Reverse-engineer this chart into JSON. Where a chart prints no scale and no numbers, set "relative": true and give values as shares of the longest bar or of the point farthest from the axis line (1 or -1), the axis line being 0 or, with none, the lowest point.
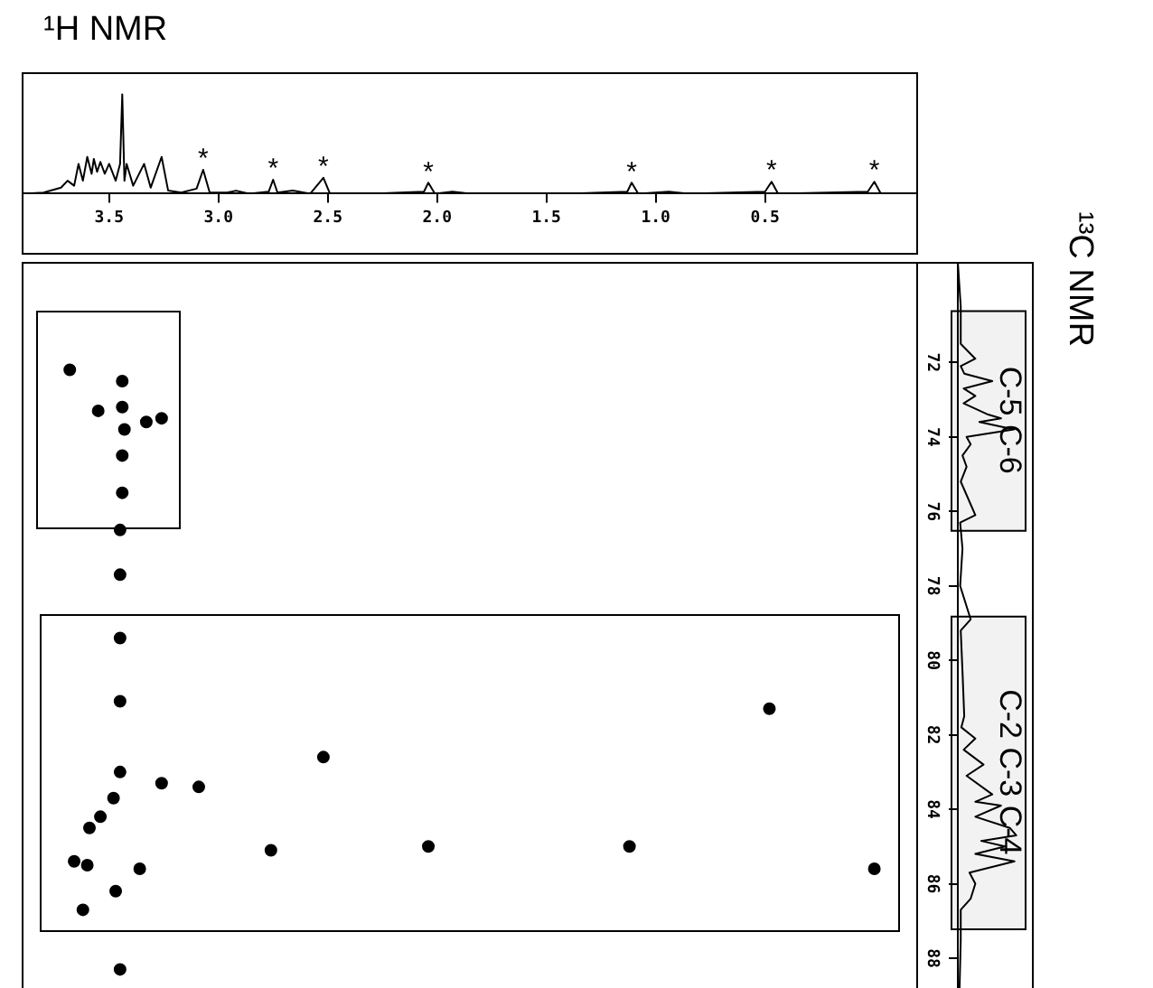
{
  "chart_data": [
    {
      "type": "line",
      "title": "¹H NMR",
      "relative": true,
      "color": "#000000",
      "xlim": [
        3.9,
        -0.2
      ],
      "xticks": [
        {
          "value": 3.5,
          "label": "3.5"
        },
        {
          "value": 3,
          "label": "3.0"
        },
        {
          "value": 2.5,
          "label": "2.5"
        },
        {
          "value": 2,
          "label": "2.0"
        },
        {
          "value": 1.5,
          "label": "1.5"
        },
        {
          "value": 1,
          "label": "1.0"
        },
        {
          "value": 0.5,
          "label": "0.5"
        }
      ],
      "x": [
        3.89,
        3.8,
        3.72,
        3.69,
        3.66,
        3.64,
        3.62,
        3.6,
        3.58,
        3.57,
        3.555,
        3.54,
        3.52,
        3.5,
        3.47,
        3.45,
        3.44,
        3.43,
        3.42,
        3.39,
        3.34,
        3.31,
        3.26,
        3.23,
        3.17,
        3.1,
        3.07,
        3.04,
        2.96,
        2.92,
        2.86,
        2.77,
        2.75,
        2.73,
        2.66,
        2.58,
        2.52,
        2.49,
        2.3,
        2.06,
        2.04,
        2.01,
        1.93,
        1.85,
        1.4,
        1.13,
        1.11,
        1.08,
        0.94,
        0.85,
        0.5,
        0.47,
        0.44,
        0.03,
        0,
        -0.03,
        -0.2
      ],
      "values": [
        0,
        0.01,
        0.06,
        0.13,
        0.08,
        0.3,
        0.13,
        0.37,
        0.2,
        0.35,
        0.22,
        0.32,
        0.2,
        0.3,
        0.13,
        0.3,
        1,
        0.13,
        0.3,
        0.08,
        0.3,
        0.06,
        0.37,
        0.03,
        0.01,
        0.05,
        0.24,
        0.01,
        0.01,
        0.03,
        0,
        0.02,
        0.14,
        0.01,
        0.03,
        0,
        0.16,
        0,
        0,
        0.02,
        0.11,
        0,
        0.02,
        0,
        0,
        0.02,
        0.11,
        0,
        0.02,
        0,
        0.02,
        0.12,
        0,
        0.02,
        0.12,
        0,
        0
      ],
      "annotations": [
        {
          "text": "*",
          "x": 3.07,
          "y": 0.24
        },
        {
          "text": "*",
          "x": 2.75,
          "y": 0.14
        },
        {
          "text": "*",
          "x": 2.52,
          "y": 0.16
        },
        {
          "text": "*",
          "x": 2.04,
          "y": 0.11
        },
        {
          "text": "*",
          "x": 1.11,
          "y": 0.11
        },
        {
          "text": "*",
          "x": 0.47,
          "y": 0.12
        },
        {
          "text": "*",
          "x": 0,
          "y": 0.12
        }
      ]
    },
    {
      "type": "scatter",
      "color": "#000000",
      "marker": "circle",
      "tick_labels": false,
      "xlim": [
        3.9,
        -0.2
      ],
      "ylim": [
        88.8,
        69.3
      ],
      "x": [
        3.68,
        3.44,
        3.44,
        3.55,
        3.43,
        3.33,
        3.26,
        3.44,
        3.44,
        3.45,
        3.45,
        3.45,
        3.45,
        3.45,
        3.48,
        3.54,
        3.59,
        3.26,
        3.09,
        2.52,
        0.48,
        3.66,
        3.6,
        3.62,
        3.47,
        3.36,
        2.76,
        2.04,
        1.12,
        0,
        3.45
      ],
      "values": [
        72.2,
        72.5,
        73.2,
        73.3,
        73.8,
        73.6,
        73.5,
        74.5,
        75.5,
        76.5,
        77.7,
        79.4,
        81.1,
        83,
        83.7,
        84.2,
        84.5,
        83.3,
        83.4,
        82.6,
        81.3,
        85.4,
        85.5,
        86.7,
        86.2,
        85.6,
        85.1,
        85,
        85,
        85.6,
        88.3
      ]
    },
    {
      "type": "line",
      "ylabel": "¹³C NMR",
      "relative": true,
      "orientation": "horizontal",
      "color": "#000000",
      "ylim": [
        88.8,
        69.3
      ],
      "yticks": [
        72,
        74,
        76,
        78,
        80,
        82,
        84,
        86,
        88
      ],
      "x": [
        69.3,
        70.5,
        71.5,
        71.9,
        72.1,
        72.3,
        72.5,
        72.7,
        72.9,
        73.1,
        73.4,
        73.5,
        73.6,
        73.8,
        74,
        74.2,
        74.5,
        74.8,
        75.2,
        76.1,
        76.3,
        77,
        78,
        78.9,
        79.2,
        80.3,
        81.5,
        81.8,
        82.1,
        82.4,
        82.8,
        83.1,
        83.6,
        83.8,
        83.9,
        84.2,
        84.5,
        84.7,
        84.85,
        85,
        85.2,
        85.4,
        85.7,
        86,
        86.4,
        86.7,
        87.5,
        88.8
      ],
      "values": [
        0,
        0.05,
        0.05,
        0.3,
        0.05,
        0.11,
        0.59,
        0.1,
        0.3,
        0.1,
        0.52,
        0.74,
        0.37,
        0.96,
        0.15,
        0.22,
        0.08,
        0.15,
        0.05,
        0.3,
        0.04,
        0.08,
        0.04,
        0.22,
        0.05,
        0.08,
        0.11,
        0.06,
        0.3,
        0.1,
        0.44,
        0.15,
        0.59,
        0.3,
        0.74,
        0.3,
        0.89,
        1,
        0.4,
        0.81,
        0.3,
        0.97,
        0.2,
        0.3,
        0.22,
        0.05,
        0.05,
        0.03
      ],
      "bands": [
        {
          "axis": "y",
          "from": 70.6,
          "to": 76.5,
          "label": "C-5 C-6"
        },
        {
          "axis": "y",
          "from": 78.8,
          "to": 87.2,
          "label": "C-2 C-3 C-4"
        }
      ]
    }
  ]
}
